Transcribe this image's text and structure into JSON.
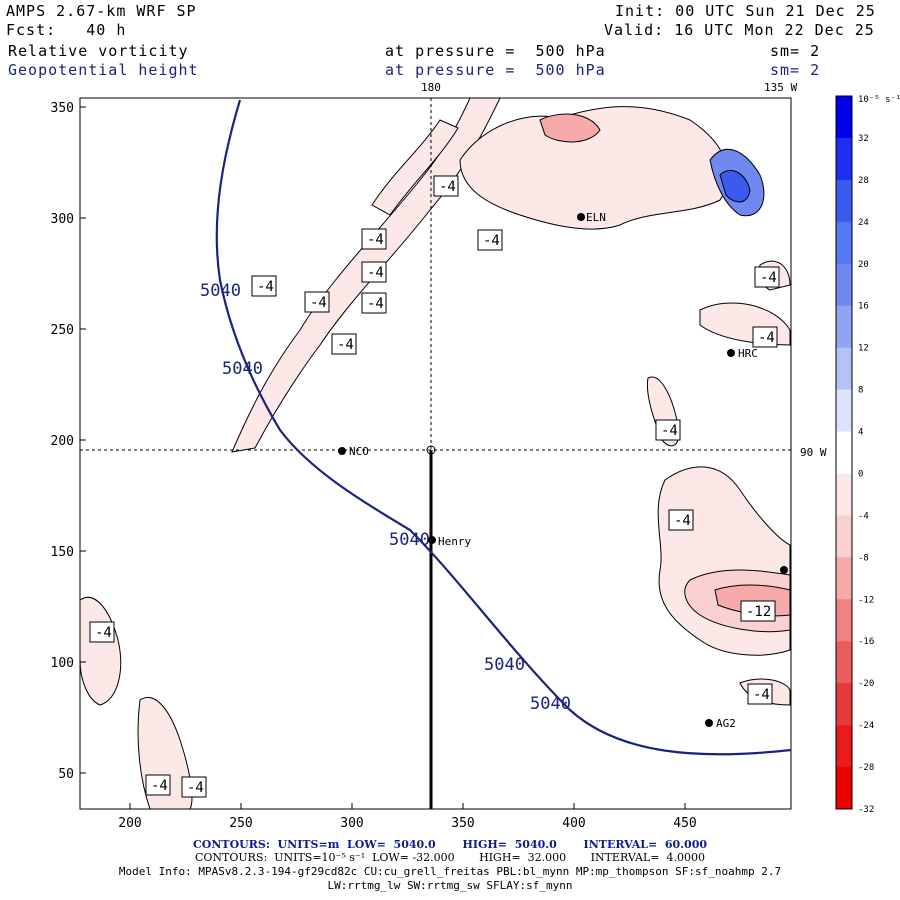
{
  "header": {
    "model": "AMPS 2.67-km WRF SP",
    "fcst": "Fcst:   40 h",
    "init": "Init: 00 UTC Sun 21 Dec 25",
    "valid": "Valid: 16 UTC Mon 22 Dec 25",
    "field1": "Relative vorticity",
    "field2": "Geopotential height",
    "pressure1": "at pressure =  500 hPa",
    "pressure2": "at pressure =  500 hPa",
    "sm1": "sm= 2",
    "sm2": "sm= 2"
  },
  "map": {
    "meridian_labels": [
      "180",
      "135 W",
      "90 W"
    ],
    "x_ticks": [
      "200",
      "250",
      "300",
      "350",
      "400",
      "450"
    ],
    "y_ticks": [
      "350",
      "300",
      "250",
      "200",
      "150",
      "100",
      "50"
    ],
    "stations": [
      "NCO",
      "Henry",
      "HRC",
      "AG2",
      "ELN"
    ],
    "height_contour_label": "5040",
    "vorticity_labels": [
      "-4",
      "-12"
    ]
  },
  "colorbar": {
    "unit": "10⁻⁵ s⁻¹",
    "ticks": [
      "32",
      "28",
      "24",
      "20",
      "16",
      "12",
      "8",
      "4",
      "0",
      "-4",
      "-8",
      "-12",
      "-16",
      "-20",
      "-24",
      "-28",
      "-32"
    ],
    "colors": [
      "#0000ee",
      "#1e2ef0",
      "#3b5bf0",
      "#5577f0",
      "#7088f0",
      "#90a4f2",
      "#b5c2f5",
      "#dde3fb",
      "#ffffff",
      "#fde8e8",
      "#fbd0d0",
      "#f6aaaa",
      "#f08282",
      "#ea5c5c",
      "#e63a3a",
      "#e81c1c",
      "#ee0000"
    ]
  },
  "footer": {
    "line1": "CONTOURS:  UNITS=m  LOW=  5040.0       HIGH=  5040.0       INTERVAL=  60.000",
    "line2": "CONTOURS:  UNITS=10⁻⁵ s⁻¹  LOW= -32.000       HIGH=  32.000       INTERVAL=  4.0000",
    "line3": "Model Info: MPASv8.2.3-194-gf29cd82c CU:cu_grell_freitas PBL:bl_mynn MP:mp_thompson SF:sf_noahmp 2.7",
    "line4": "LW:rrtmg_lw SW:rrtmg_sw SFLAY:sf_mynn"
  }
}
